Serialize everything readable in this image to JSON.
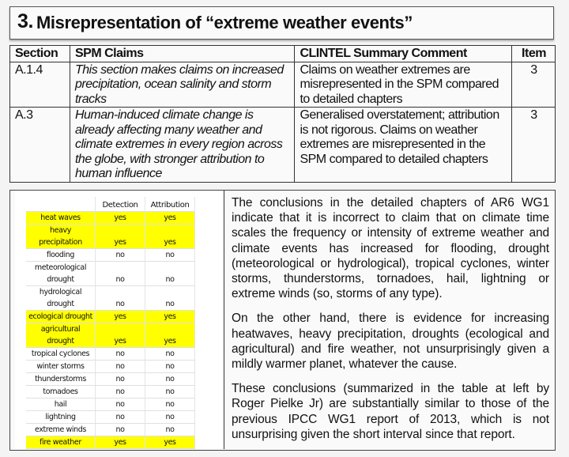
{
  "title": {
    "number": "3.",
    "text": "Misrepresentation of “extreme weather events”"
  },
  "claims_table": {
    "headers": [
      "Section",
      "SPM Claims",
      "CLINTEL Summary Comment",
      "Item"
    ],
    "rows": [
      {
        "section": "A.1.4",
        "claim": "This section makes claims on increased precipitation, ocean salinity and storm tracks",
        "comment": "Claims on weather extremes are misrepresented in the SPM compared to detailed chapters",
        "item": "3"
      },
      {
        "section": "A.3",
        "claim": "Human-induced climate change is already affecting many weather and climate extremes in every region across the globe, with stronger attribution to human influence",
        "comment": "Generalised overstatement; attribution is not rigorous. Claims on weather extremes are misrepresented in the SPM compared to detailed chapters",
        "item": "3"
      }
    ]
  },
  "event_table": {
    "headers": [
      "",
      "Detection",
      "Attribution"
    ],
    "highlight_color": "#ffff00",
    "rows": [
      {
        "event": "heat waves",
        "detection": "yes",
        "attribution": "yes",
        "highlight": true
      },
      {
        "event": "heavy precipitation",
        "detection": "yes",
        "attribution": "yes",
        "highlight": true
      },
      {
        "event": "flooding",
        "detection": "no",
        "attribution": "no",
        "highlight": false
      },
      {
        "event": "meteorological drought",
        "detection": "no",
        "attribution": "no",
        "highlight": false
      },
      {
        "event": "hydrological drought",
        "detection": "no",
        "attribution": "no",
        "highlight": false
      },
      {
        "event": "ecological drought",
        "detection": "yes",
        "attribution": "yes",
        "highlight": true
      },
      {
        "event": "agricultural drought",
        "detection": "yes",
        "attribution": "yes",
        "highlight": true
      },
      {
        "event": "tropical cyclones",
        "detection": "no",
        "attribution": "no",
        "highlight": false
      },
      {
        "event": "winter storms",
        "detection": "no",
        "attribution": "no",
        "highlight": false
      },
      {
        "event": "thunderstorms",
        "detection": "no",
        "attribution": "no",
        "highlight": false
      },
      {
        "event": "tornadoes",
        "detection": "no",
        "attribution": "no",
        "highlight": false
      },
      {
        "event": "hail",
        "detection": "no",
        "attribution": "no",
        "highlight": false
      },
      {
        "event": "lightning",
        "detection": "no",
        "attribution": "no",
        "highlight": false
      },
      {
        "event": "extreme winds",
        "detection": "no",
        "attribution": "no",
        "highlight": false
      },
      {
        "event": "fire weather",
        "detection": "yes",
        "attribution": "yes",
        "highlight": true
      }
    ]
  },
  "paragraphs": [
    "The conclusions in the detailed chapters of AR6 WG1 indicate that it is incorrect to claim that on climate time scales the frequency or intensity of extreme weather and climate events has increased for flooding, drought (meteorological or hydrological), tropical cyclones, winter storms, thunderstorms, tornadoes, hail, lightning or extreme winds (so, storms of any type).",
    "On the other hand, there is evidence for increasing heatwaves, heavy precipitation, droughts (ecological and agricultural) and fire weather, not unsurprisingly given a mildly warmer planet, whatever the cause.",
    "These conclusions (summarized in the table at left by Roger Pielke Jr) are substantially similar to those of the previous IPCC WG1 report of 2013, which is not unsurprising given the short interval since that report."
  ]
}
